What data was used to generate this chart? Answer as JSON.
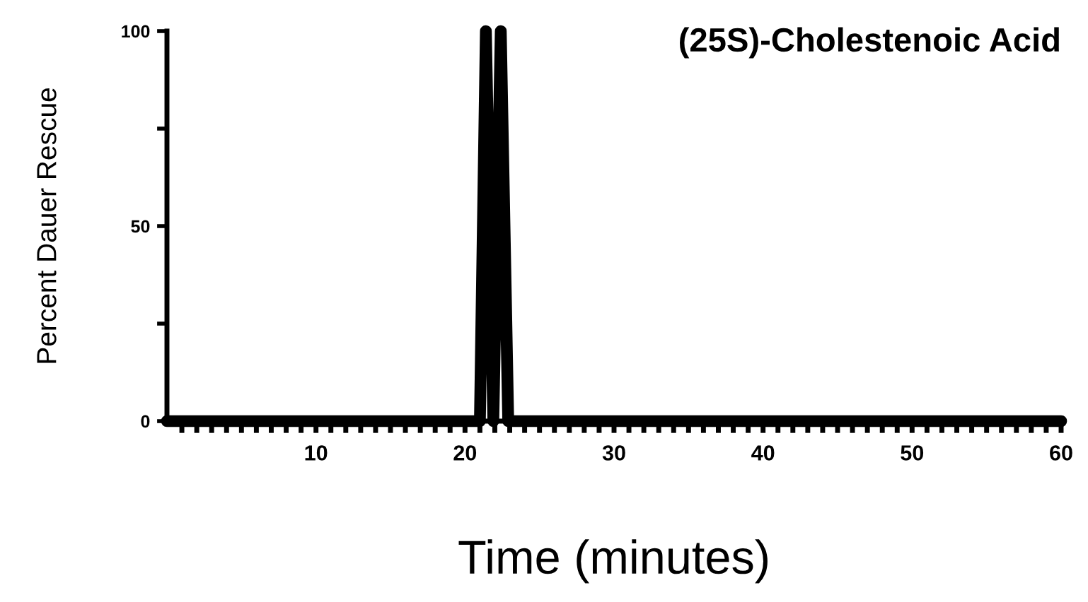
{
  "chart_data": {
    "type": "line",
    "title": "(25S)-Cholestenoic Acid",
    "xlabel": "Time (minutes)",
    "ylabel": "Percent Dauer Rescue",
    "x": [
      0,
      21,
      21.4,
      21.9,
      22.4,
      22.9,
      60
    ],
    "series": [
      {
        "color": "#000000",
        "values": [
          0,
          0,
          100,
          0,
          100,
          0,
          0
        ]
      }
    ],
    "xlim": [
      0,
      60
    ],
    "xticks": [
      {
        "value": 1,
        "label": null
      },
      {
        "value": 2,
        "label": null
      },
      {
        "value": 3,
        "label": null
      },
      {
        "value": 4,
        "label": null
      },
      {
        "value": 5,
        "label": null
      },
      {
        "value": 6,
        "label": null
      },
      {
        "value": 7,
        "label": null
      },
      {
        "value": 8,
        "label": null
      },
      {
        "value": 9,
        "label": null
      },
      10,
      {
        "value": 11,
        "label": null
      },
      {
        "value": 12,
        "label": null
      },
      {
        "value": 13,
        "label": null
      },
      {
        "value": 14,
        "label": null
      },
      {
        "value": 15,
        "label": null
      },
      {
        "value": 16,
        "label": null
      },
      {
        "value": 17,
        "label": null
      },
      {
        "value": 18,
        "label": null
      },
      {
        "value": 19,
        "label": null
      },
      20,
      {
        "value": 21,
        "label": null
      },
      {
        "value": 22,
        "label": null
      },
      {
        "value": 23,
        "label": null
      },
      {
        "value": 24,
        "label": null
      },
      {
        "value": 25,
        "label": null
      },
      {
        "value": 26,
        "label": null
      },
      {
        "value": 27,
        "label": null
      },
      {
        "value": 28,
        "label": null
      },
      {
        "value": 29,
        "label": null
      },
      30,
      {
        "value": 31,
        "label": null
      },
      {
        "value": 32,
        "label": null
      },
      {
        "value": 33,
        "label": null
      },
      {
        "value": 34,
        "label": null
      },
      {
        "value": 35,
        "label": null
      },
      {
        "value": 36,
        "label": null
      },
      {
        "value": 37,
        "label": null
      },
      {
        "value": 38,
        "label": null
      },
      {
        "value": 39,
        "label": null
      },
      40,
      {
        "value": 41,
        "label": null
      },
      {
        "value": 42,
        "label": null
      },
      {
        "value": 43,
        "label": null
      },
      {
        "value": 44,
        "label": null
      },
      {
        "value": 45,
        "label": null
      },
      {
        "value": 46,
        "label": null
      },
      {
        "value": 47,
        "label": null
      },
      {
        "value": 48,
        "label": null
      },
      {
        "value": 49,
        "label": null
      },
      50,
      {
        "value": 51,
        "label": null
      },
      {
        "value": 52,
        "label": null
      },
      {
        "value": 53,
        "label": null
      },
      {
        "value": 54,
        "label": null
      },
      {
        "value": 55,
        "label": null
      },
      {
        "value": 56,
        "label": null
      },
      {
        "value": 57,
        "label": null
      },
      {
        "value": 58,
        "label": null
      },
      {
        "value": 59,
        "label": null
      },
      60
    ],
    "ylim": [
      0,
      100
    ],
    "yticks": [
      0,
      {
        "value": 25,
        "label": null
      },
      50,
      {
        "value": 75,
        "label": null
      },
      100
    ],
    "grid": false,
    "legend": false,
    "marker": "none",
    "line_style": "solid"
  }
}
